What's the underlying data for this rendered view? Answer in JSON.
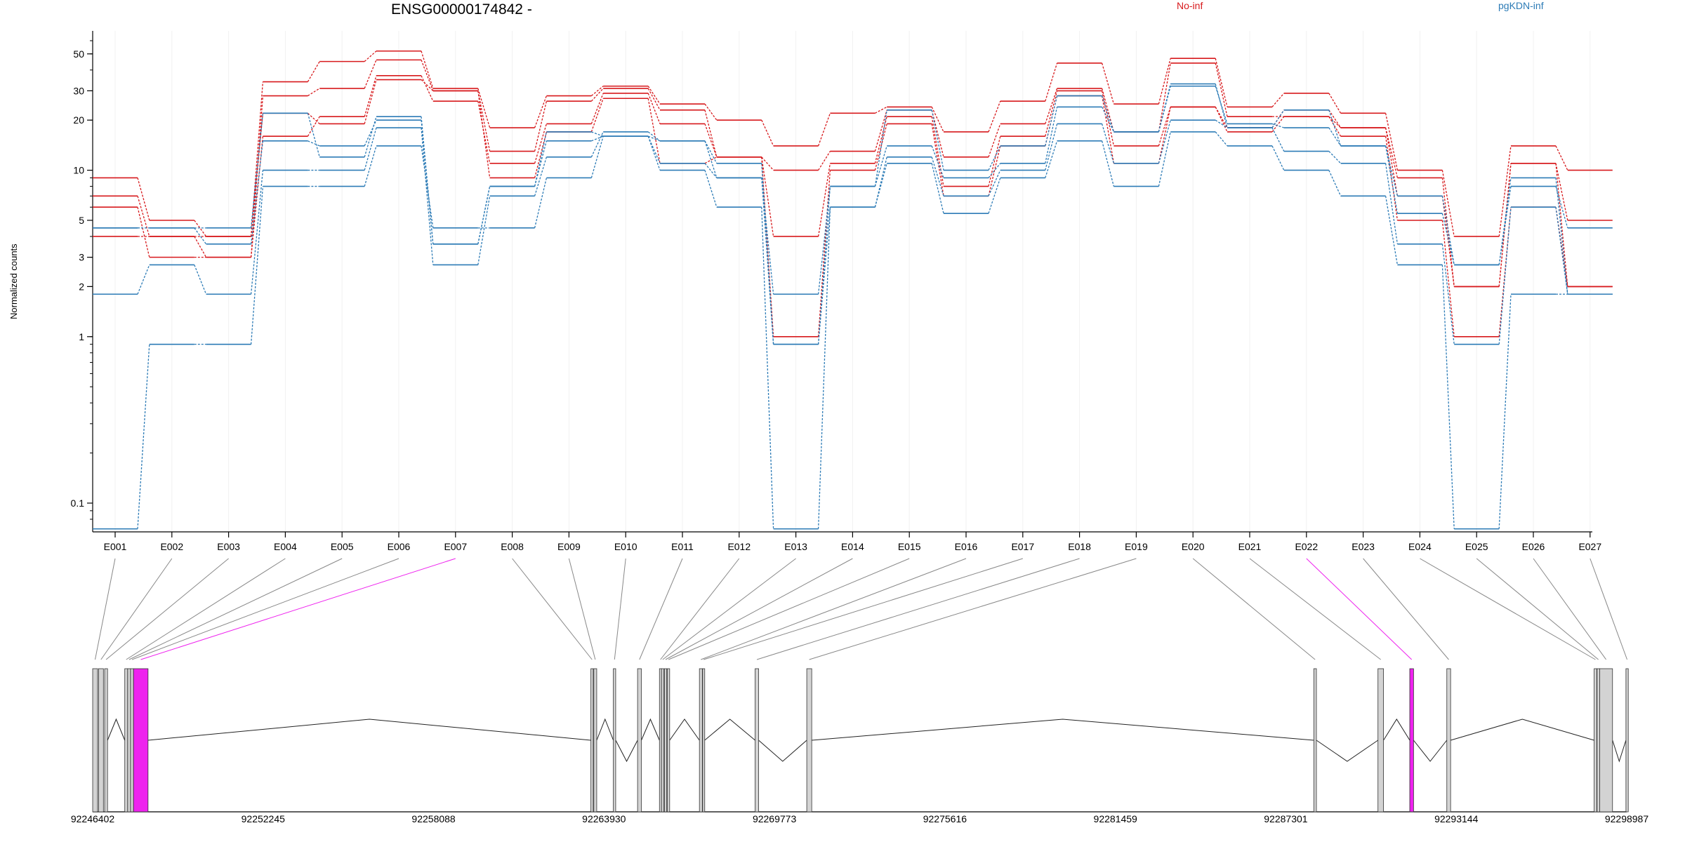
{
  "title": "ENSG00000174842 -",
  "legend": [
    {
      "label": "No-inf",
      "color": "#d7191c"
    },
    {
      "label": "pgKDN-inf",
      "color": "#2c7bb6"
    }
  ],
  "chart_data": [
    {
      "type": "line",
      "description_scale": "log",
      "ylabel": "Normalized counts",
      "ytick_labels": [
        "0.1",
        "1",
        "2",
        "3",
        "5",
        "10",
        "20",
        "30",
        "50"
      ],
      "ytick_values": [
        0.1,
        1,
        2,
        3,
        5,
        10,
        20,
        30,
        50
      ],
      "ylim": [
        0.08,
        60
      ],
      "categories": [
        "E001",
        "E002",
        "E003",
        "E004",
        "E005",
        "E006",
        "E007",
        "E008",
        "E009",
        "E010",
        "E011",
        "E012",
        "E013",
        "E014",
        "E015",
        "E016",
        "E017",
        "E018",
        "E019",
        "E020",
        "E021",
        "E022",
        "E023",
        "E024",
        "E025",
        "E026",
        "E027"
      ],
      "series": [
        {
          "group": "No-inf",
          "color": "#d7191c",
          "values": [
            9.0,
            5.0,
            4.0,
            34,
            45,
            52,
            31,
            18,
            28,
            32,
            25,
            20,
            14,
            22,
            24,
            17,
            26,
            44,
            25,
            47,
            24,
            29,
            22,
            10,
            4.0,
            14,
            10
          ]
        },
        {
          "group": "No-inf",
          "color": "#d7191c",
          "values": [
            7.0,
            4.0,
            3.0,
            28,
            31,
            46,
            30,
            13,
            26,
            31,
            23,
            12,
            10,
            13,
            23,
            12,
            19,
            31,
            17,
            44,
            21,
            21,
            18,
            9.0,
            2.0,
            11,
            5.0
          ]
        },
        {
          "group": "No-inf",
          "color": "#d7191c",
          "values": [
            6.0,
            3.0,
            3.0,
            16,
            21,
            37,
            26,
            11,
            19,
            29,
            19,
            12,
            4.0,
            11,
            21,
            8.0,
            16,
            30,
            14,
            24,
            18,
            23,
            18,
            7.0,
            2.0,
            11,
            2.0
          ]
        },
        {
          "group": "No-inf",
          "color": "#d7191c",
          "values": [
            4.0,
            4.0,
            4.0,
            22,
            19,
            35,
            30,
            9.0,
            17,
            27,
            11,
            12,
            1.0,
            10,
            19,
            7.0,
            14,
            28,
            11,
            24,
            17,
            21,
            16,
            5.0,
            1.0,
            6.0,
            2.0
          ]
        },
        {
          "group": "pgKDN-inf",
          "color": "#2c7bb6",
          "values": [
            0.07,
            0.9,
            0.9,
            8.0,
            8.0,
            14,
            4.5,
            4.5,
            9.0,
            16,
            10,
            6.0,
            0.07,
            6.0,
            11,
            5.5,
            9.0,
            15,
            8.0,
            17,
            14,
            10,
            7.0,
            2.7,
            0.07,
            1.8,
            1.8
          ]
        },
        {
          "group": "pgKDN-inf",
          "color": "#2c7bb6",
          "values": [
            1.8,
            2.7,
            1.8,
            10,
            10,
            18,
            2.7,
            7.0,
            12,
            17,
            15,
            9.0,
            0.9,
            6.0,
            12,
            7.0,
            10,
            19,
            11,
            20,
            18,
            13,
            11,
            3.6,
            0.9,
            6.0,
            1.8
          ]
        },
        {
          "group": "pgKDN-inf",
          "color": "#2c7bb6",
          "values": [
            4.5,
            4.5,
            3.6,
            15,
            14,
            20,
            3.6,
            8.0,
            15,
            16,
            15,
            11,
            0.9,
            8.0,
            14,
            9.0,
            11,
            24,
            17,
            32,
            19,
            18,
            14,
            5.5,
            2.7,
            8.0,
            4.5
          ]
        },
        {
          "group": "pgKDN-inf",
          "color": "#2c7bb6",
          "values": [
            4.5,
            4.5,
            4.5,
            22,
            12,
            21,
            3.6,
            8.0,
            17,
            16,
            11,
            9.0,
            1.8,
            8.0,
            23,
            10,
            14,
            28,
            17,
            33,
            18,
            23,
            14,
            7.0,
            2.7,
            9.0,
            1.8
          ]
        }
      ]
    },
    {
      "type": "gene-model",
      "exons": [
        "E001",
        "E002",
        "E003",
        "E004",
        "E005",
        "E006",
        "E007",
        "E008",
        "E009",
        "E010",
        "E011",
        "E012",
        "E013",
        "E014",
        "E015",
        "E016",
        "E017",
        "E018",
        "E019",
        "E020",
        "E021",
        "E022",
        "E023",
        "E024",
        "E025",
        "E026",
        "E027"
      ],
      "exon_starts": [
        92246402,
        92246602,
        92246812,
        92247502,
        92247602,
        92247702,
        92247802,
        92263480,
        92263580,
        92264250,
        92265080,
        92265830,
        92265900,
        92266000,
        92266100,
        92267200,
        92267310,
        92269110,
        92270880,
        92288260,
        92290460,
        92291550,
        92292820,
        92297870,
        92297970,
        92298060,
        92298960
      ],
      "exon_ends": [
        92246570,
        92246770,
        92246912,
        92247600,
        92247700,
        92247800,
        92248300,
        92263560,
        92263680,
        92264330,
        92265210,
        92265900,
        92265980,
        92266080,
        92266180,
        92267300,
        92267380,
        92269230,
        92271050,
        92288350,
        92290650,
        92291680,
        92292950,
        92297960,
        92298060,
        92298500,
        92299040
      ],
      "highlighted": [
        "E007",
        "E022"
      ],
      "highlight_color": "#ee22ee",
      "exon_color": "#d3d3d3",
      "xlim": [
        92246402,
        92298987
      ],
      "xtick_labels": [
        "92246402",
        "92252245",
        "92258088",
        "92263930",
        "92269773",
        "92275616",
        "92281459",
        "92287301",
        "92293144",
        "92298987"
      ],
      "xtick_values": [
        92246402,
        92252245,
        92258088,
        92263930,
        92269773,
        92275616,
        92281459,
        92287301,
        92293144,
        92298987
      ]
    }
  ]
}
